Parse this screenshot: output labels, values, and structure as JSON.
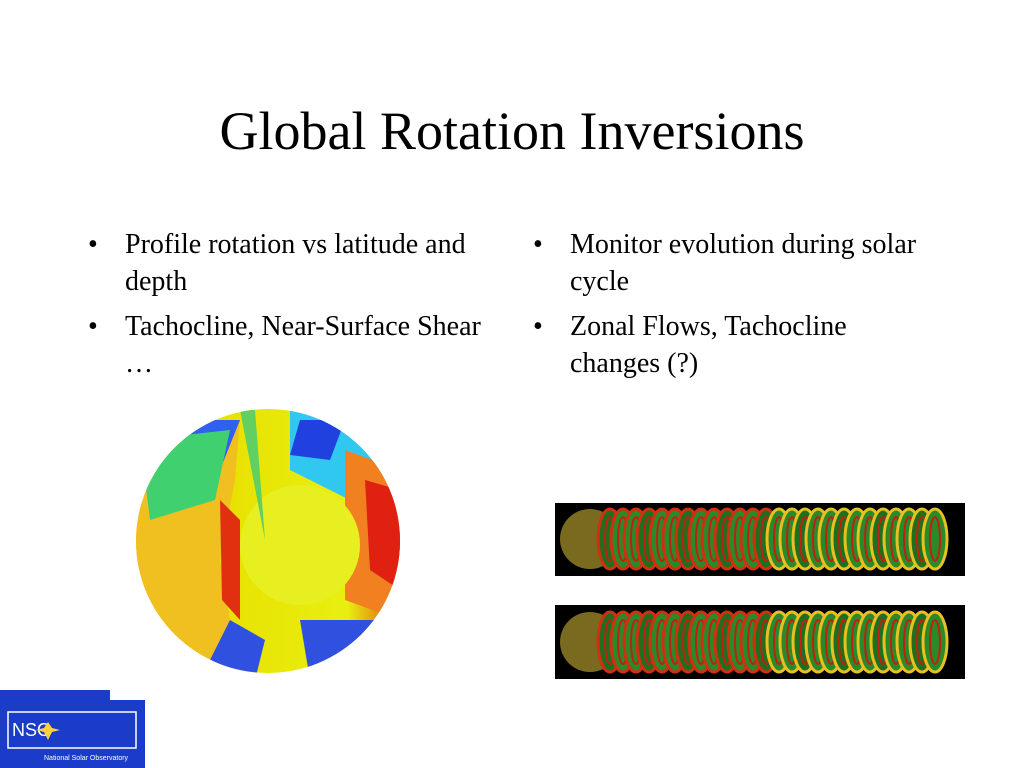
{
  "title": "Global Rotation Inversions",
  "left_bullets": [
    "Profile rotation vs latitude and depth",
    "Tachocline, Near-Surface Shear …"
  ],
  "right_bullets": [
    "Monitor evolution during solar cycle",
    "Zonal Flows, Tachocline changes (?)"
  ],
  "logo": {
    "abbr": "NSO",
    "name": "National Solar Observatory"
  }
}
